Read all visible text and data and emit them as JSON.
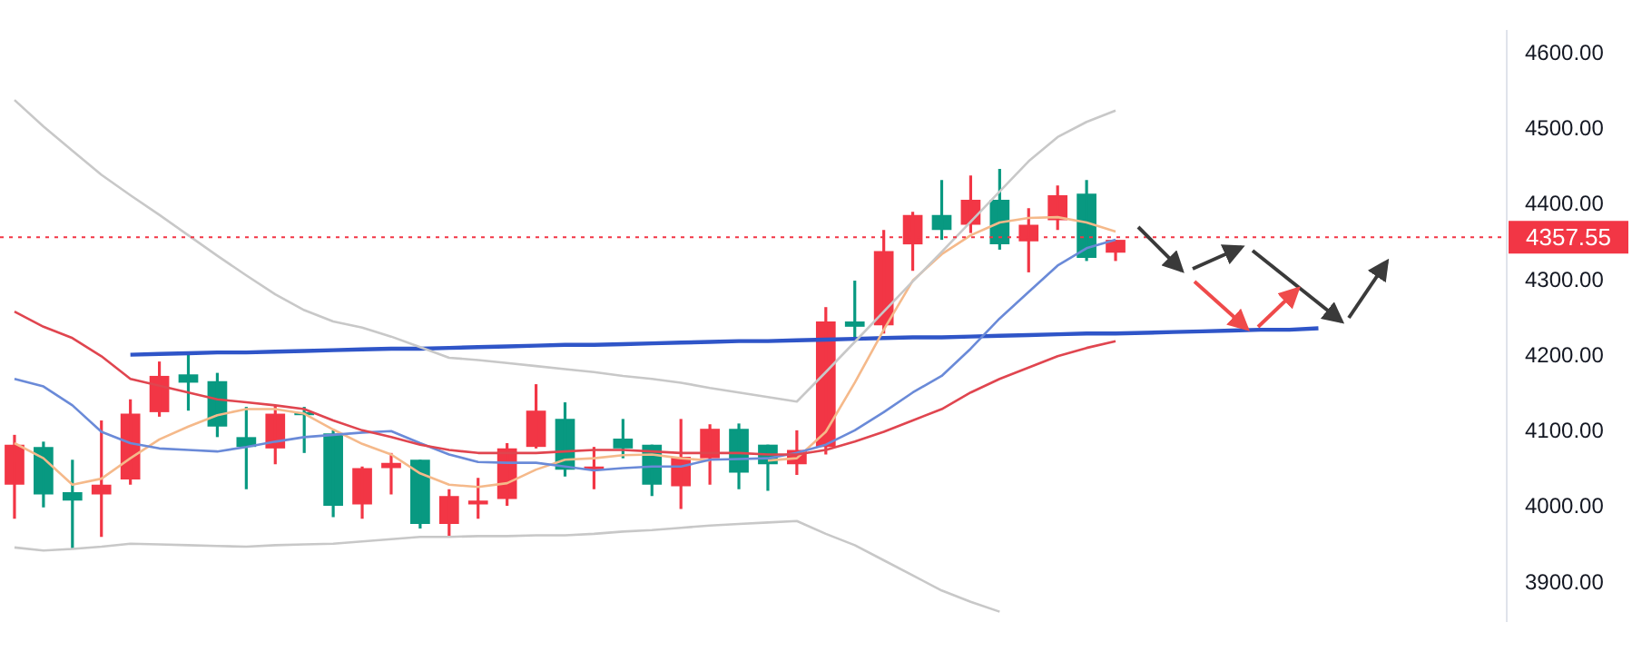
{
  "chart_data": {
    "type": "candlestick",
    "categories": [
      null,
      null,
      null,
      null,
      null,
      null,
      null,
      null,
      null,
      null,
      null,
      null,
      null,
      null,
      null,
      null,
      null,
      null,
      null,
      null,
      null,
      null,
      null,
      null,
      null,
      null,
      null,
      null,
      null,
      null,
      null,
      null,
      null,
      null,
      null,
      null,
      null,
      null,
      null,
      null,
      null,
      null,
      null,
      null,
      null,
      null,
      null,
      null,
      null,
      null,
      null,
      null
    ],
    "ohlc": [
      [
        4030,
        4096,
        3985,
        4083
      ],
      [
        4080,
        4087,
        4000,
        4017
      ],
      [
        4020,
        4063,
        3946,
        4009
      ],
      [
        4017,
        4115,
        3961,
        4030
      ],
      [
        4037,
        4143,
        4030,
        4124
      ],
      [
        4126,
        4193,
        4120,
        4174
      ],
      [
        4176,
        4204,
        4128,
        4165
      ],
      [
        4167,
        4178,
        4093,
        4107
      ],
      [
        4093,
        4133,
        4024,
        4080
      ],
      [
        4078,
        4135,
        4057,
        4124
      ],
      [
        4126,
        4133,
        4072,
        4122
      ],
      [
        4098,
        4102,
        3987,
        4002
      ],
      [
        4004,
        4054,
        3985,
        4052
      ],
      [
        4052,
        4072,
        4017,
        4059
      ],
      [
        4063,
        4063,
        3972,
        3978
      ],
      [
        3978,
        4024,
        3961,
        4015
      ],
      [
        4004,
        4039,
        3985,
        4009
      ],
      [
        4011,
        4085,
        4002,
        4078
      ],
      [
        4080,
        4163,
        4078,
        4128
      ],
      [
        4117,
        4139,
        4041,
        4050
      ],
      [
        4050,
        4080,
        4024,
        4054
      ],
      [
        4091,
        4117,
        4065,
        4078
      ],
      [
        4083,
        4083,
        4015,
        4030
      ],
      [
        4028,
        4117,
        3998,
        4067
      ],
      [
        4065,
        4110,
        4030,
        4104
      ],
      [
        4104,
        4111,
        4024,
        4046
      ],
      [
        4083,
        4083,
        4022,
        4057
      ],
      [
        4057,
        4102,
        4043,
        4076
      ],
      [
        4080,
        4265,
        4070,
        4246
      ],
      [
        4246,
        4300,
        4222,
        4239
      ],
      [
        4241,
        4367,
        4230,
        4339
      ],
      [
        4348,
        4391,
        4313,
        4387
      ],
      [
        4387,
        4433,
        4354,
        4367
      ],
      [
        4374,
        4439,
        4363,
        4407
      ],
      [
        4407,
        4448,
        4341,
        4348
      ],
      [
        4352,
        4396,
        4311,
        4374
      ],
      [
        4380,
        4426,
        4367,
        4413
      ],
      [
        4415,
        4433,
        4326,
        4330
      ],
      [
        4337,
        4354,
        4326,
        4354
      ],
      null,
      null,
      null,
      null,
      null,
      null,
      null,
      null,
      null,
      null,
      null,
      null,
      null
    ],
    "colors": [
      "#f23645",
      "#089981",
      "#089981",
      "#f23645",
      "#f23645",
      "#f23645",
      "#089981",
      "#089981",
      "#089981",
      "#f23645",
      "#089981",
      "#089981",
      "#f23645",
      "#f23645",
      "#089981",
      "#f23645",
      "#f23645",
      "#f23645",
      "#f23645",
      "#089981",
      "#f23645",
      "#089981",
      "#089981",
      "#f23645",
      "#f23645",
      "#089981",
      "#089981",
      "#f23645",
      "#f23645",
      "#089981",
      "#f23645",
      "#f23645",
      "#089981",
      "#f23645",
      "#089981",
      "#f23645",
      "#f23645",
      "#089981",
      "#f23645",
      null,
      null,
      null,
      null,
      null,
      null,
      null,
      null,
      null,
      null,
      null,
      null,
      null
    ],
    "series": [
      {
        "type": "line",
        "color": "#c8c8c8",
        "values": [
          4539,
          4504,
          4472,
          4440,
          4413,
          4387,
          4360,
          4333,
          4307,
          4282,
          4261,
          4246,
          4238,
          4226,
          4212,
          4198,
          4195,
          4191,
          4187,
          4183,
          4179,
          4174,
          4170,
          4165,
          4158,
          4152,
          4146,
          4140,
          4179,
          4219,
          4259,
          4299,
          4338,
          4378,
          4418,
          4458,
          4490,
          4510,
          4525,
          null,
          null,
          null,
          null,
          null,
          null,
          null,
          null,
          null,
          null,
          null,
          null,
          null
        ]
      },
      {
        "type": "line",
        "color": "#c8c8c8",
        "values": [
          3947,
          3943,
          3945,
          3948,
          3952,
          3951,
          3950,
          3949,
          3948,
          3950,
          3951,
          3952,
          3955,
          3958,
          3961,
          3961,
          3962,
          3962,
          3963,
          3963,
          3965,
          3968,
          3970,
          3973,
          3976,
          3978,
          3980,
          3982,
          3965,
          3950,
          3930,
          3910,
          3890,
          3875,
          3862,
          null,
          null,
          null,
          null,
          null,
          null,
          null,
          null,
          null,
          null,
          null,
          null,
          null,
          null,
          null,
          null,
          null
        ]
      },
      {
        "type": "line",
        "color": "#e0454f",
        "values": [
          4259,
          4239,
          4224,
          4200,
          4170,
          4161,
          4152,
          4143,
          4139,
          4135,
          4130,
          4115,
          4102,
          4093,
          4083,
          4076,
          4072,
          4072,
          4072,
          4074,
          4076,
          4076,
          4074,
          4072,
          4072,
          4072,
          4070,
          4070,
          4076,
          4087,
          4100,
          4115,
          4130,
          4152,
          4170,
          4185,
          4200,
          4211,
          4220,
          null,
          null,
          null,
          null,
          null,
          null,
          null,
          null,
          null,
          null,
          null,
          null,
          null
        ]
      },
      {
        "type": "line",
        "color": "#6a8ad8",
        "values": [
          4170,
          4160,
          4135,
          4100,
          4085,
          4078,
          4076,
          4074,
          4080,
          4087,
          4093,
          4096,
          4099,
          4101,
          4085,
          4070,
          4060,
          4059,
          4059,
          4054,
          4049,
          4052,
          4054,
          4054,
          4063,
          4064,
          4065,
          4072,
          4083,
          4102,
          4126,
          4152,
          4174,
          4210,
          4250,
          4285,
          4320,
          4343,
          4354,
          null,
          null,
          null,
          null,
          null,
          null,
          null,
          null,
          null,
          null,
          null,
          null,
          null
        ]
      },
      {
        "type": "line",
        "color": "#f5b98a",
        "values": [
          4085,
          4065,
          4030,
          4038,
          4065,
          4090,
          4107,
          4122,
          4130,
          4130,
          4124,
          4103,
          4084,
          4070,
          4045,
          4030,
          4027,
          4032,
          4050,
          4063,
          4065,
          4069,
          4070,
          4065,
          4062,
          null,
          4062,
          4065,
          4100,
          4165,
          4235,
          4300,
          4335,
          4360,
          4377,
          4383,
          4384,
          4377,
          4365,
          null,
          null,
          null,
          null,
          null,
          null,
          null,
          null,
          null,
          null,
          null,
          null,
          null
        ]
      },
      {
        "type": "line",
        "color": "#2f55c8",
        "values": [
          null,
          null,
          null,
          null,
          4202,
          4203,
          4204,
          4205,
          4205,
          4206,
          4207,
          4208,
          4209,
          4210,
          4210,
          4211,
          4212,
          4213,
          4214,
          4215,
          4215,
          4216,
          4217,
          4218,
          4219,
          4220,
          4220,
          4221,
          4222,
          4223,
          4224,
          4225,
          4225,
          4226,
          4227,
          4228,
          4229,
          4230,
          4230,
          4231,
          4232,
          4233,
          4234,
          4235,
          4235,
          4237,
          null,
          null,
          null,
          null,
          null,
          null
        ]
      }
    ],
    "ylim": [
      3850,
      4630
    ],
    "yticks": [
      {
        "value": 3900,
        "label": "3900.00"
      },
      {
        "value": 4000,
        "label": "4000.00"
      },
      {
        "value": 4100,
        "label": "4100.00"
      },
      {
        "value": 4200,
        "label": "4200.00"
      },
      {
        "value": 4300,
        "label": "4300.00"
      },
      {
        "value": 4400,
        "label": "4400.00"
      },
      {
        "value": 4500,
        "label": "4500.00"
      },
      {
        "value": 4600,
        "label": "4600.00"
      }
    ],
    "ref_lines": [
      {
        "axis": "y",
        "value": 4357.55,
        "label": "4357.55",
        "color": "#f23645",
        "line_style": "dotted"
      }
    ],
    "tick_labels": "y",
    "grid": false,
    "legend": false
  }
}
